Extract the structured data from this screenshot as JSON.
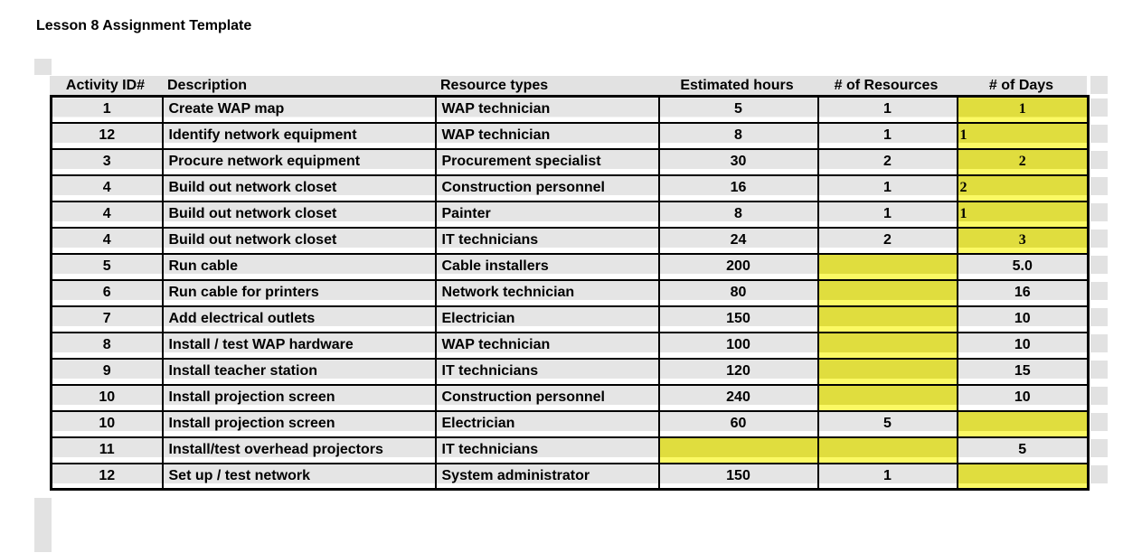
{
  "page": {
    "title": "Lesson 8 Assignment Template"
  },
  "colors": {
    "row_gray": "#e5e5e5",
    "header_gray": "#e2e2e2",
    "highlight_yellow": "#e0dd3e",
    "highlight_yellow_light": "#fbf964",
    "border_black": "#000000"
  },
  "table": {
    "headers": [
      "Activity ID#",
      "Description",
      "Resource types",
      "Estimated hours",
      "# of Resources",
      "# of Days"
    ],
    "rows": [
      [
        {
          "t": "1"
        },
        {
          "t": "Create WAP map"
        },
        {
          "t": "WAP technician"
        },
        {
          "t": "5"
        },
        {
          "t": "1"
        },
        {
          "t": "1",
          "hl": true,
          "serif": true,
          "align": "center"
        }
      ],
      [
        {
          "t": "12"
        },
        {
          "t": "Identify network equipment"
        },
        {
          "t": "WAP technician"
        },
        {
          "t": "8"
        },
        {
          "t": "1"
        },
        {
          "t": "1",
          "hl": true,
          "serif": true,
          "align": "left"
        }
      ],
      [
        {
          "t": "3"
        },
        {
          "t": "Procure network equipment"
        },
        {
          "t": "Procurement specialist"
        },
        {
          "t": "30"
        },
        {
          "t": "2"
        },
        {
          "t": "2",
          "hl": true,
          "serif": true,
          "align": "center"
        }
      ],
      [
        {
          "t": "4"
        },
        {
          "t": "Build out network closet"
        },
        {
          "t": "Construction personnel"
        },
        {
          "t": "16"
        },
        {
          "t": "1"
        },
        {
          "t": "2",
          "hl": true,
          "serif": true,
          "align": "left"
        }
      ],
      [
        {
          "t": "4"
        },
        {
          "t": "Build out network closet"
        },
        {
          "t": "Painter"
        },
        {
          "t": "8"
        },
        {
          "t": "1"
        },
        {
          "t": "1",
          "hl": true,
          "serif": true,
          "align": "left"
        }
      ],
      [
        {
          "t": "4"
        },
        {
          "t": "Build out network closet"
        },
        {
          "t": "IT technicians"
        },
        {
          "t": "24"
        },
        {
          "t": "2"
        },
        {
          "t": "3",
          "hl": true,
          "serif": true,
          "align": "center"
        }
      ],
      [
        {
          "t": "5"
        },
        {
          "t": "Run cable"
        },
        {
          "t": "Cable installers"
        },
        {
          "t": "200"
        },
        {
          "t": "",
          "hl": true
        },
        {
          "t": "5.0"
        }
      ],
      [
        {
          "t": "6"
        },
        {
          "t": "Run cable for printers"
        },
        {
          "t": "Network technician"
        },
        {
          "t": "80"
        },
        {
          "t": "",
          "hl": true
        },
        {
          "t": "16"
        }
      ],
      [
        {
          "t": "7"
        },
        {
          "t": "Add electrical outlets"
        },
        {
          "t": "Electrician"
        },
        {
          "t": "150"
        },
        {
          "t": "",
          "hl": true
        },
        {
          "t": "10"
        }
      ],
      [
        {
          "t": "8"
        },
        {
          "t": "Install / test WAP hardware"
        },
        {
          "t": "WAP technician"
        },
        {
          "t": "100"
        },
        {
          "t": "",
          "hl": true
        },
        {
          "t": "10"
        }
      ],
      [
        {
          "t": "9"
        },
        {
          "t": "Install teacher station"
        },
        {
          "t": "IT technicians"
        },
        {
          "t": "120"
        },
        {
          "t": "",
          "hl": true
        },
        {
          "t": "15"
        }
      ],
      [
        {
          "t": "10"
        },
        {
          "t": "Install projection screen"
        },
        {
          "t": "Construction personnel"
        },
        {
          "t": "240"
        },
        {
          "t": "",
          "hl": true
        },
        {
          "t": "10"
        }
      ],
      [
        {
          "t": "10"
        },
        {
          "t": "Install projection screen"
        },
        {
          "t": "Electrician"
        },
        {
          "t": "60"
        },
        {
          "t": "5"
        },
        {
          "t": "",
          "hl": true
        }
      ],
      [
        {
          "t": "11"
        },
        {
          "t": "Install/test overhead projectors"
        },
        {
          "t": "IT technicians"
        },
        {
          "t": "",
          "hl": true
        },
        {
          "t": "",
          "hl": true
        },
        {
          "t": "5"
        }
      ],
      [
        {
          "t": "12"
        },
        {
          "t": "Set up / test network"
        },
        {
          "t": "System administrator"
        },
        {
          "t": "150"
        },
        {
          "t": "1"
        },
        {
          "t": "",
          "hl": true
        }
      ]
    ]
  }
}
